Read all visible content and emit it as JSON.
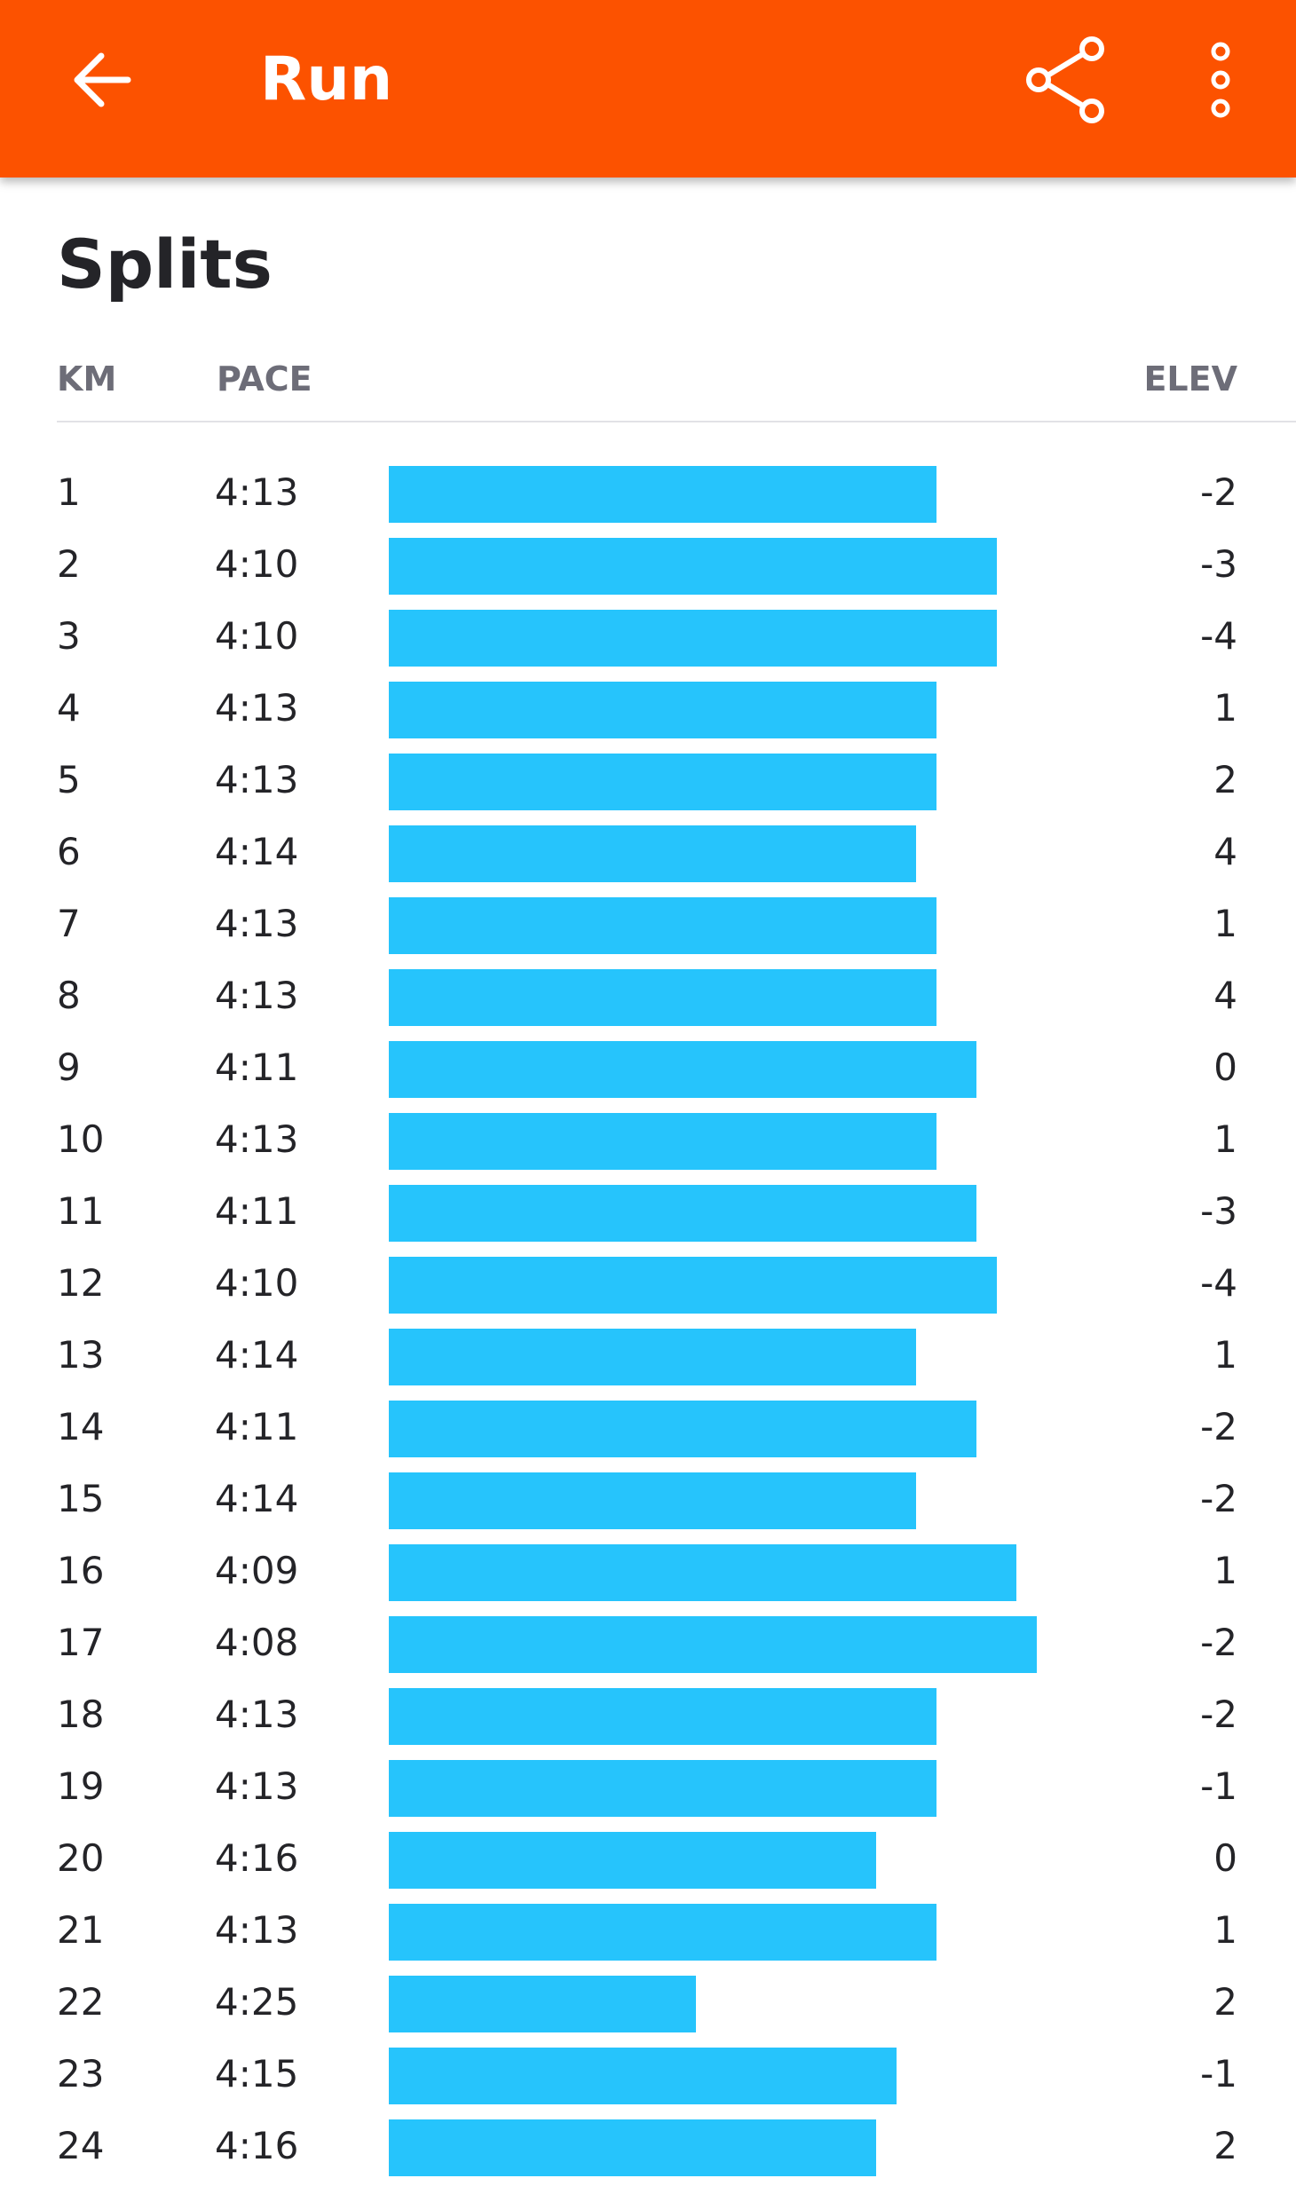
{
  "app_bar": {
    "title": "Run",
    "background": "#FC5200",
    "back_icon": "arrow-left-icon",
    "share_icon": "share-icon",
    "more_icon": "more-vertical-icon"
  },
  "splits": {
    "title": "Splits",
    "headers": {
      "km": "KM",
      "pace": "PACE",
      "elev": "ELEV"
    },
    "bar_color": "#26C4FC",
    "rows": [
      {
        "km": "1",
        "pace": "4:13",
        "elev": "-2"
      },
      {
        "km": "2",
        "pace": "4:10",
        "elev": "-3"
      },
      {
        "km": "3",
        "pace": "4:10",
        "elev": "-4"
      },
      {
        "km": "4",
        "pace": "4:13",
        "elev": "1"
      },
      {
        "km": "5",
        "pace": "4:13",
        "elev": "2"
      },
      {
        "km": "6",
        "pace": "4:14",
        "elev": "4"
      },
      {
        "km": "7",
        "pace": "4:13",
        "elev": "1"
      },
      {
        "km": "8",
        "pace": "4:13",
        "elev": "4"
      },
      {
        "km": "9",
        "pace": "4:11",
        "elev": "0"
      },
      {
        "km": "10",
        "pace": "4:13",
        "elev": "1"
      },
      {
        "km": "11",
        "pace": "4:11",
        "elev": "-3"
      },
      {
        "km": "12",
        "pace": "4:10",
        "elev": "-4"
      },
      {
        "km": "13",
        "pace": "4:14",
        "elev": "1"
      },
      {
        "km": "14",
        "pace": "4:11",
        "elev": "-2"
      },
      {
        "km": "15",
        "pace": "4:14",
        "elev": "-2"
      },
      {
        "km": "16",
        "pace": "4:09",
        "elev": "1"
      },
      {
        "km": "17",
        "pace": "4:08",
        "elev": "-2"
      },
      {
        "km": "18",
        "pace": "4:13",
        "elev": "-2"
      },
      {
        "km": "19",
        "pace": "4:13",
        "elev": "-1"
      },
      {
        "km": "20",
        "pace": "4:16",
        "elev": "0"
      },
      {
        "km": "21",
        "pace": "4:13",
        "elev": "1"
      },
      {
        "km": "22",
        "pace": "4:25",
        "elev": "2"
      },
      {
        "km": "23",
        "pace": "4:15",
        "elev": "-1"
      },
      {
        "km": "24",
        "pace": "4:16",
        "elev": "2"
      }
    ]
  }
}
